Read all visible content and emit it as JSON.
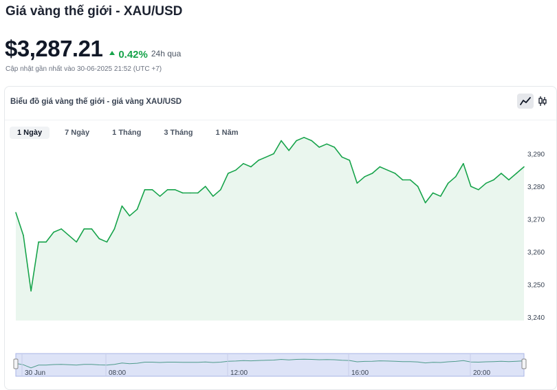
{
  "header": {
    "title": "Giá vàng thế giới - XAU/USD",
    "price": "$3,287.21",
    "change": "0.42%",
    "period": "24h qua",
    "updated": "Cập nhật gần nhất vào 30-06-2025 21:52 (UTC +7)"
  },
  "card": {
    "title": "Biểu đồ giá vàng thế giới - giá vàng XAU/USD",
    "tabs": [
      "1 Ngày",
      "7 Ngày",
      "1 Tháng",
      "3 Tháng",
      "1 Năm"
    ],
    "active_tab": 0,
    "view_icons": [
      "line-chart-icon",
      "candlestick-icon"
    ]
  },
  "colors": {
    "line": "#16a34a",
    "fill": "#eaf6ee",
    "accent_up": "#16a34a",
    "navigator_bg": "#dde3f7"
  },
  "chart_data": {
    "type": "area",
    "title": "",
    "xlabel": "",
    "ylabel": "",
    "ylim": [
      3240,
      3292
    ],
    "y_ticks": [
      3290,
      3280,
      3270,
      3260,
      3250,
      3240
    ],
    "y_tick_labels": [
      "3,290",
      "3,280",
      "3,270",
      "3,260",
      "3,250",
      "3,240"
    ],
    "x_tick_labels": [
      "30 Jun",
      "08:00",
      "12:00",
      "16:00",
      "20:00"
    ],
    "series": [
      {
        "values": [
          3272,
          3265,
          3248,
          3263,
          3263,
          3266,
          3267,
          3265,
          3263,
          3267,
          3267,
          3264,
          3263,
          3267,
          3274,
          3271,
          3273,
          3279,
          3279,
          3277,
          3279,
          3279,
          3278,
          3278,
          3278,
          3280,
          3277,
          3279,
          3284,
          3285,
          3287,
          3286,
          3288,
          3289,
          3290,
          3294,
          3291,
          3294,
          3295,
          3294,
          3292,
          3293,
          3292,
          3289,
          3288,
          3281,
          3283,
          3284,
          3286,
          3285,
          3284,
          3282,
          3282,
          3280,
          3275,
          3278,
          3277,
          3281,
          3283,
          3287,
          3280,
          3279,
          3281,
          3282,
          3284,
          3282,
          3284,
          3286
        ]
      }
    ],
    "grid": false,
    "legend": "none"
  }
}
